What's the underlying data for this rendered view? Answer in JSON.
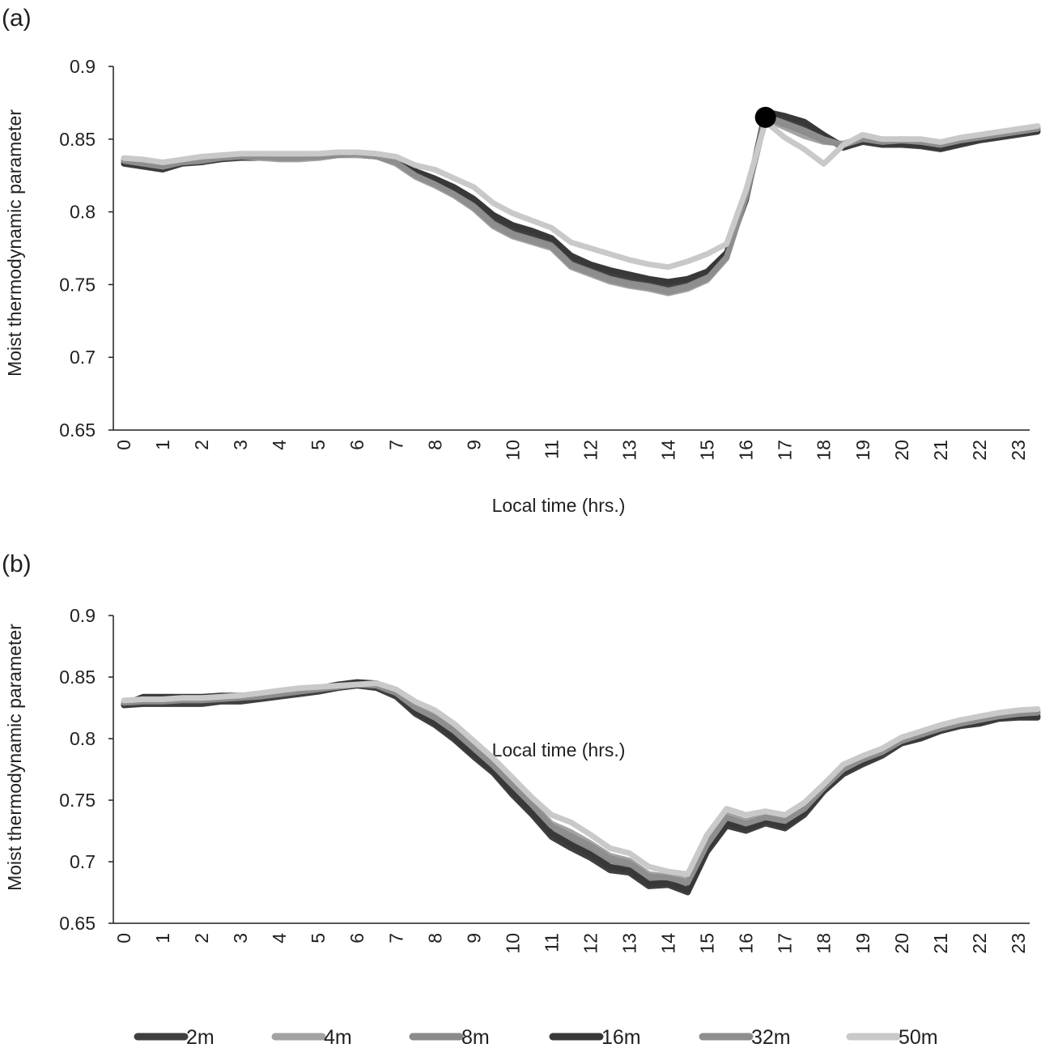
{
  "legend": [
    {
      "name": "2m",
      "color": "#3f3f3f"
    },
    {
      "name": "4m",
      "color": "#a3a3a3"
    },
    {
      "name": "8m",
      "color": "#8a8a8a"
    },
    {
      "name": "16m",
      "color": "#383838"
    },
    {
      "name": "32m",
      "color": "#8e8e8e"
    },
    {
      "name": "50m",
      "color": "#c9c9c9"
    }
  ],
  "chart_data": [
    {
      "panel_label": "(a)",
      "type": "line",
      "xlabel": "Local time (hrs.)",
      "ylabel": "Moist thermodynamic parameter",
      "ylim": [
        0.65,
        0.9
      ],
      "yticks": [
        "0.65",
        "0.7",
        "0.75",
        "0.8",
        "0.85",
        "0.9"
      ],
      "xticks": [
        "0",
        "1",
        "2",
        "3",
        "4",
        "5",
        "6",
        "7",
        "8",
        "9",
        "10",
        "11",
        "12",
        "13",
        "14",
        "15",
        "16",
        "17",
        "18",
        "19",
        "20",
        "21",
        "22",
        "23"
      ],
      "x_step_hours": 0.5,
      "marker": {
        "x": 16.5,
        "y": 0.865
      },
      "series": [
        {
          "name": "2m",
          "values": [
            0.833,
            0.831,
            0.829,
            0.833,
            0.834,
            0.836,
            0.837,
            0.837,
            0.837,
            0.837,
            0.837,
            0.839,
            0.839,
            0.838,
            0.834,
            0.826,
            0.821,
            0.815,
            0.807,
            0.795,
            0.788,
            0.784,
            0.779,
            0.767,
            0.761,
            0.757,
            0.754,
            0.751,
            0.749,
            0.751,
            0.757,
            0.771,
            0.808,
            0.868,
            0.865,
            0.86,
            0.852,
            0.844,
            0.848,
            0.846,
            0.846,
            0.845,
            0.843,
            0.846,
            0.849,
            0.851,
            0.853,
            0.855
          ]
        },
        {
          "name": "4m",
          "values": [
            0.836,
            0.835,
            0.833,
            0.834,
            0.835,
            0.837,
            0.838,
            0.837,
            0.836,
            0.836,
            0.837,
            0.839,
            0.839,
            0.838,
            0.833,
            0.824,
            0.818,
            0.811,
            0.802,
            0.79,
            0.783,
            0.779,
            0.775,
            0.762,
            0.757,
            0.752,
            0.749,
            0.747,
            0.744,
            0.747,
            0.753,
            0.768,
            0.81,
            0.864,
            0.858,
            0.852,
            0.848,
            0.847,
            0.851,
            0.849,
            0.85,
            0.849,
            0.847,
            0.85,
            0.852,
            0.853,
            0.856,
            0.858
          ]
        },
        {
          "name": "8m",
          "values": [
            0.835,
            0.834,
            0.832,
            0.834,
            0.835,
            0.837,
            0.838,
            0.838,
            0.837,
            0.837,
            0.838,
            0.839,
            0.84,
            0.838,
            0.834,
            0.825,
            0.819,
            0.812,
            0.804,
            0.792,
            0.785,
            0.781,
            0.777,
            0.764,
            0.759,
            0.754,
            0.751,
            0.749,
            0.746,
            0.749,
            0.755,
            0.77,
            0.809,
            0.865,
            0.86,
            0.855,
            0.849,
            0.846,
            0.85,
            0.848,
            0.849,
            0.848,
            0.846,
            0.849,
            0.851,
            0.852,
            0.855,
            0.857
          ]
        },
        {
          "name": "16m",
          "values": [
            0.834,
            0.832,
            0.83,
            0.834,
            0.835,
            0.837,
            0.838,
            0.838,
            0.838,
            0.838,
            0.838,
            0.84,
            0.84,
            0.839,
            0.836,
            0.828,
            0.823,
            0.817,
            0.809,
            0.798,
            0.791,
            0.787,
            0.782,
            0.77,
            0.764,
            0.76,
            0.757,
            0.754,
            0.752,
            0.754,
            0.759,
            0.772,
            0.809,
            0.869,
            0.866,
            0.862,
            0.853,
            0.845,
            0.849,
            0.847,
            0.847,
            0.846,
            0.844,
            0.847,
            0.85,
            0.852,
            0.854,
            0.856
          ]
        },
        {
          "name": "32m",
          "values": [
            0.835,
            0.833,
            0.831,
            0.834,
            0.835,
            0.837,
            0.838,
            0.838,
            0.837,
            0.837,
            0.838,
            0.839,
            0.84,
            0.838,
            0.834,
            0.825,
            0.819,
            0.812,
            0.803,
            0.791,
            0.784,
            0.78,
            0.776,
            0.763,
            0.758,
            0.753,
            0.75,
            0.748,
            0.745,
            0.748,
            0.754,
            0.769,
            0.81,
            0.866,
            0.861,
            0.856,
            0.85,
            0.846,
            0.85,
            0.848,
            0.849,
            0.848,
            0.846,
            0.849,
            0.851,
            0.853,
            0.855,
            0.857
          ]
        },
        {
          "name": "50m",
          "values": [
            0.837,
            0.836,
            0.834,
            0.836,
            0.838,
            0.839,
            0.84,
            0.84,
            0.84,
            0.84,
            0.84,
            0.841,
            0.841,
            0.84,
            0.838,
            0.832,
            0.829,
            0.823,
            0.817,
            0.806,
            0.799,
            0.794,
            0.789,
            0.779,
            0.775,
            0.771,
            0.767,
            0.764,
            0.762,
            0.766,
            0.771,
            0.778,
            0.815,
            0.862,
            0.851,
            0.843,
            0.833,
            0.846,
            0.853,
            0.85,
            0.85,
            0.85,
            0.848,
            0.851,
            0.853,
            0.855,
            0.857,
            0.859
          ]
        }
      ]
    },
    {
      "panel_label": "(b)",
      "type": "line",
      "xlabel": "Local time (hrs.)",
      "ylabel": "Moist thermodynamic parameter",
      "ylim": [
        0.65,
        0.9
      ],
      "yticks": [
        "0.65",
        "0.7",
        "0.75",
        "0.8",
        "0.85",
        "0.9"
      ],
      "xticks": [
        "0",
        "1",
        "2",
        "3",
        "4",
        "5",
        "6",
        "7",
        "8",
        "9",
        "10",
        "11",
        "12",
        "13",
        "14",
        "15",
        "16",
        "17",
        "18",
        "19",
        "20",
        "21",
        "22",
        "23"
      ],
      "x_step_hours": 0.5,
      "series": [
        {
          "name": "2m",
          "values": [
            0.827,
            0.828,
            0.828,
            0.828,
            0.828,
            0.83,
            0.83,
            0.832,
            0.834,
            0.836,
            0.838,
            0.841,
            0.843,
            0.841,
            0.834,
            0.82,
            0.811,
            0.799,
            0.785,
            0.772,
            0.754,
            0.738,
            0.72,
            0.711,
            0.703,
            0.693,
            0.691,
            0.68,
            0.681,
            0.675,
            0.708,
            0.729,
            0.725,
            0.731,
            0.727,
            0.738,
            0.757,
            0.771,
            0.779,
            0.786,
            0.796,
            0.8,
            0.806,
            0.81,
            0.812,
            0.816,
            0.817,
            0.817
          ]
        },
        {
          "name": "4m",
          "values": [
            0.83,
            0.831,
            0.831,
            0.832,
            0.832,
            0.833,
            0.834,
            0.835,
            0.837,
            0.839,
            0.841,
            0.842,
            0.844,
            0.844,
            0.838,
            0.826,
            0.818,
            0.807,
            0.793,
            0.779,
            0.763,
            0.747,
            0.731,
            0.724,
            0.715,
            0.705,
            0.701,
            0.69,
            0.688,
            0.685,
            0.716,
            0.738,
            0.733,
            0.737,
            0.734,
            0.744,
            0.76,
            0.776,
            0.784,
            0.79,
            0.799,
            0.804,
            0.809,
            0.813,
            0.816,
            0.819,
            0.821,
            0.822
          ]
        },
        {
          "name": "8m",
          "values": [
            0.829,
            0.83,
            0.83,
            0.831,
            0.831,
            0.832,
            0.833,
            0.834,
            0.836,
            0.838,
            0.84,
            0.842,
            0.844,
            0.843,
            0.837,
            0.824,
            0.816,
            0.804,
            0.79,
            0.777,
            0.76,
            0.744,
            0.727,
            0.719,
            0.711,
            0.701,
            0.697,
            0.686,
            0.685,
            0.681,
            0.713,
            0.734,
            0.73,
            0.735,
            0.731,
            0.742,
            0.759,
            0.774,
            0.782,
            0.788,
            0.798,
            0.802,
            0.808,
            0.812,
            0.814,
            0.818,
            0.819,
            0.82
          ]
        },
        {
          "name": "16m",
          "values": [
            0.828,
            0.834,
            0.834,
            0.834,
            0.834,
            0.835,
            0.835,
            0.836,
            0.838,
            0.84,
            0.841,
            0.844,
            0.846,
            0.845,
            0.836,
            0.822,
            0.813,
            0.801,
            0.787,
            0.774,
            0.756,
            0.74,
            0.723,
            0.714,
            0.706,
            0.696,
            0.693,
            0.682,
            0.683,
            0.677,
            0.71,
            0.731,
            0.727,
            0.733,
            0.729,
            0.74,
            0.758,
            0.773,
            0.781,
            0.788,
            0.797,
            0.801,
            0.807,
            0.811,
            0.813,
            0.817,
            0.818,
            0.818
          ]
        },
        {
          "name": "32m",
          "values": [
            0.829,
            0.831,
            0.831,
            0.832,
            0.832,
            0.833,
            0.834,
            0.835,
            0.837,
            0.839,
            0.84,
            0.842,
            0.844,
            0.843,
            0.837,
            0.825,
            0.817,
            0.806,
            0.792,
            0.778,
            0.762,
            0.746,
            0.729,
            0.721,
            0.713,
            0.703,
            0.699,
            0.688,
            0.687,
            0.683,
            0.714,
            0.736,
            0.731,
            0.736,
            0.733,
            0.743,
            0.76,
            0.775,
            0.783,
            0.789,
            0.798,
            0.803,
            0.808,
            0.812,
            0.815,
            0.818,
            0.82,
            0.821
          ]
        },
        {
          "name": "50m",
          "values": [
            0.831,
            0.832,
            0.832,
            0.833,
            0.833,
            0.834,
            0.835,
            0.837,
            0.839,
            0.841,
            0.842,
            0.843,
            0.844,
            0.845,
            0.84,
            0.83,
            0.823,
            0.812,
            0.798,
            0.784,
            0.768,
            0.752,
            0.738,
            0.732,
            0.722,
            0.711,
            0.707,
            0.696,
            0.692,
            0.69,
            0.722,
            0.743,
            0.738,
            0.741,
            0.738,
            0.748,
            0.763,
            0.779,
            0.786,
            0.792,
            0.801,
            0.806,
            0.811,
            0.815,
            0.818,
            0.821,
            0.823,
            0.824
          ]
        }
      ]
    }
  ]
}
